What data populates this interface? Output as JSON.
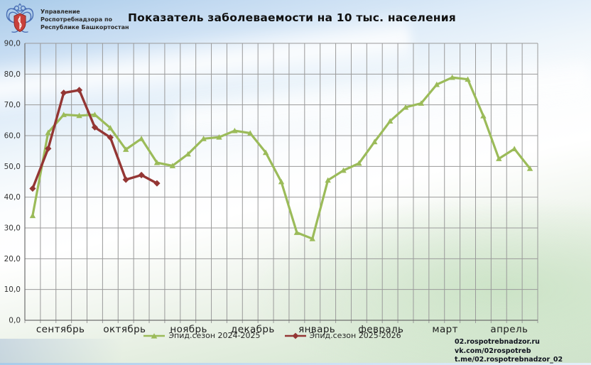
{
  "header": {
    "logo": "rospotrebnadzor-emblem",
    "org_lines": [
      "Управление",
      "Роспотребнадзора по",
      "Республике Башкортостан"
    ],
    "title": "Показатель заболеваемости на 10 тыс. населения"
  },
  "chart_data": {
    "type": "line",
    "title": "Показатель заболеваемости на 10 тыс. населения",
    "xlabel": "",
    "ylabel": "",
    "grid": true,
    "legend_position": "bottom-center",
    "y_axis": {
      "min": 0,
      "max": 90,
      "step": 10,
      "tick_labels_top_to_bottom": [
        "90,0",
        "80,0",
        "70,0",
        "60,0",
        "50,0",
        "40,0",
        "30,0",
        "20,0",
        "10,0",
        "0,0"
      ]
    },
    "x_axis": {
      "unit": "week",
      "weeks_total": 33,
      "month_labels": [
        "сентябрь",
        "октябрь",
        "ноябрь",
        "декабрь",
        "январь",
        "февраль",
        "март",
        "апрель"
      ]
    },
    "series": [
      {
        "name": "Эпид.сезон 2024-2025",
        "color": "#9BBB59",
        "marker": "triangle",
        "values": [
          34.0,
          61.0,
          66.8,
          66.5,
          66.8,
          62.5,
          55.5,
          59.0,
          51.2,
          50.2,
          54.0,
          59.0,
          59.5,
          61.6,
          60.8,
          54.5,
          45.0,
          28.5,
          26.5,
          45.5,
          48.7,
          51.0,
          58.0,
          64.7,
          69.2,
          70.5,
          76.6,
          78.9,
          78.3,
          66.4,
          52.5,
          55.7,
          49.3
        ]
      },
      {
        "name": "Эпид.сезон 2025-2026",
        "color": "#943634",
        "marker": "diamond",
        "values": [
          42.8,
          55.8,
          73.9,
          74.8,
          62.7,
          59.4,
          45.7,
          47.2,
          44.5
        ]
      }
    ]
  },
  "footer": {
    "links": [
      "02.rospotrebnadzor.ru",
      "vk.com/02rospotreb",
      "t.me/02.rospotrebnadzor_02"
    ]
  }
}
